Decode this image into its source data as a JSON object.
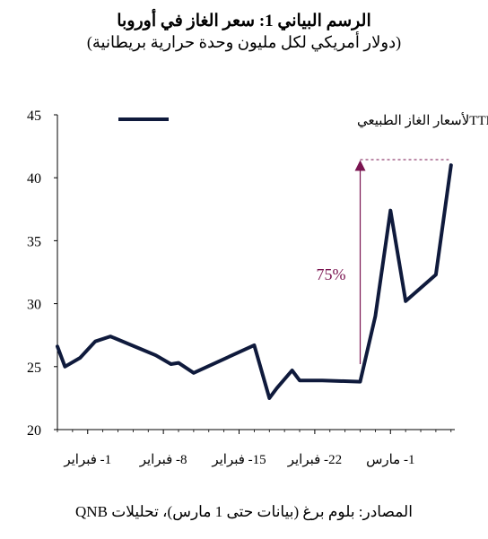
{
  "title": "الرسم البياني 1: سعر الغاز في أوروبا",
  "subtitle": "(دولار أمريكي لكل مليون وحدة حرارية بريطانية)",
  "source": "المصادر: بلوم برغ (بيانات حتى 1 مارس)، تحليلات QNB",
  "colors": {
    "series": "#0f1a3c",
    "annotation": "#7a1450",
    "axis": "#000000"
  },
  "chart_data": {
    "type": "line",
    "ylim": [
      20,
      45
    ],
    "yticks": [
      20,
      25,
      30,
      35,
      40,
      45
    ],
    "x_domain": [
      0,
      47
    ],
    "xticks": [
      {
        "x": 4,
        "label": "1- فبراير"
      },
      {
        "x": 14,
        "label": "8- فبراير"
      },
      {
        "x": 24,
        "label": "15- فبراير"
      },
      {
        "x": 34,
        "label": "22- فبراير"
      },
      {
        "x": 44,
        "label": "1- مارس"
      }
    ],
    "series": [
      {
        "name": "مؤشر TTFلأسعار الغاز الطبيعي",
        "x": [
          0,
          1,
          3,
          5,
          7,
          11,
          13,
          15,
          16,
          18,
          26,
          28,
          29,
          31,
          32,
          35,
          40,
          42,
          44,
          46,
          50,
          52
        ],
        "y": [
          26.6,
          25.0,
          25.7,
          27.0,
          27.4,
          26.4,
          25.9,
          25.2,
          25.3,
          24.5,
          26.7,
          22.5,
          23.3,
          24.7,
          23.9,
          23.9,
          23.8,
          29.0,
          37.4,
          30.2,
          32.3,
          41.0
        ]
      }
    ],
    "annotation": {
      "label": "75%",
      "from": 25.2,
      "to": 41.4,
      "arrow_x": 40
    }
  }
}
